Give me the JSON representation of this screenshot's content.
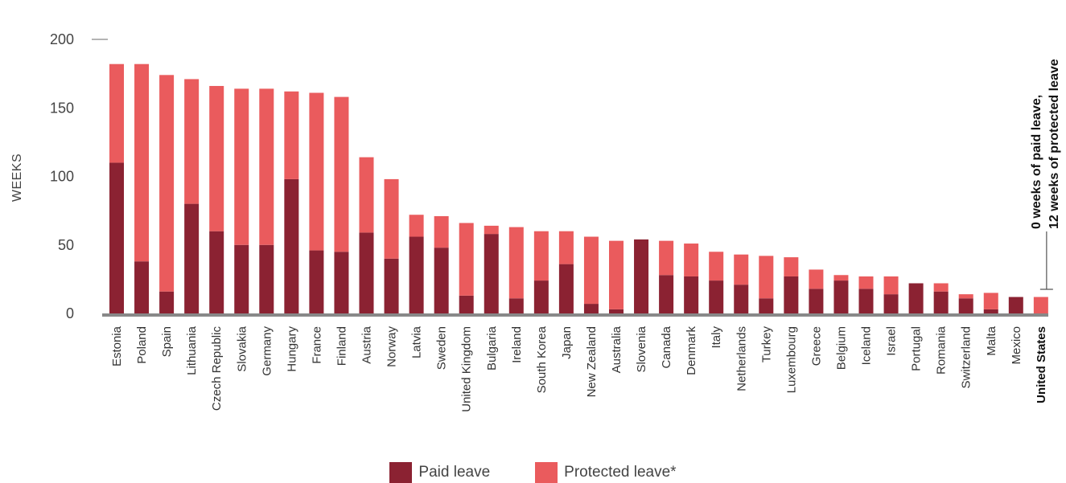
{
  "chart_data": {
    "type": "bar",
    "stacked": true,
    "orientation": "vertical",
    "ylabel": "WEEKS",
    "ylim": [
      0,
      200
    ],
    "yticks": [
      "0",
      "50",
      "100",
      "150",
      "200"
    ],
    "grid": false,
    "categories": [
      "Estonia",
      "Poland",
      "Spain",
      "Lithuania",
      "Czech Republic",
      "Slovakia",
      "Germany",
      "Hungary",
      "France",
      "Finland",
      "Austria",
      "Norway",
      "Latvia",
      "Sweden",
      "United Kingdom",
      "Bulgaria",
      "Ireland",
      "South Korea",
      "Japan",
      "New Zealand",
      "Australia",
      "Slovenia",
      "Canada",
      "Denmark",
      "Italy",
      "Netherlands",
      "Turkey",
      "Luxembourg",
      "Greece",
      "Belgium",
      "Iceland",
      "Israel",
      "Portugal",
      "Romania",
      "Switzerland",
      "Malta",
      "Mexico",
      "United States"
    ],
    "highlight_category": "United States",
    "series": [
      {
        "name": "Paid leave",
        "color": "#8B2232",
        "values": [
          110,
          38,
          16,
          80,
          60,
          50,
          50,
          98,
          46,
          45,
          59,
          40,
          56,
          48,
          13,
          58,
          11,
          24,
          36,
          7,
          3,
          54,
          28,
          27,
          24,
          21,
          11,
          27,
          18,
          24,
          18,
          14,
          22,
          16,
          11,
          3,
          12,
          0
        ]
      },
      {
        "name": "Protected leave*",
        "color": "#EA5B5D",
        "values": [
          72,
          144,
          158,
          91,
          106,
          114,
          114,
          64,
          115,
          113,
          55,
          58,
          16,
          23,
          53,
          6,
          52,
          36,
          24,
          49,
          50,
          0,
          25,
          24,
          21,
          22,
          31,
          14,
          14,
          4,
          9,
          13,
          0,
          6,
          3,
          12,
          0,
          12
        ]
      }
    ],
    "legend": {
      "position": "bottom-center",
      "items": [
        "Paid leave",
        "Protected leave*"
      ]
    },
    "annotation": {
      "line1": "0 weeks of paid leave,",
      "line2": "12 weeks of protected leave"
    }
  }
}
